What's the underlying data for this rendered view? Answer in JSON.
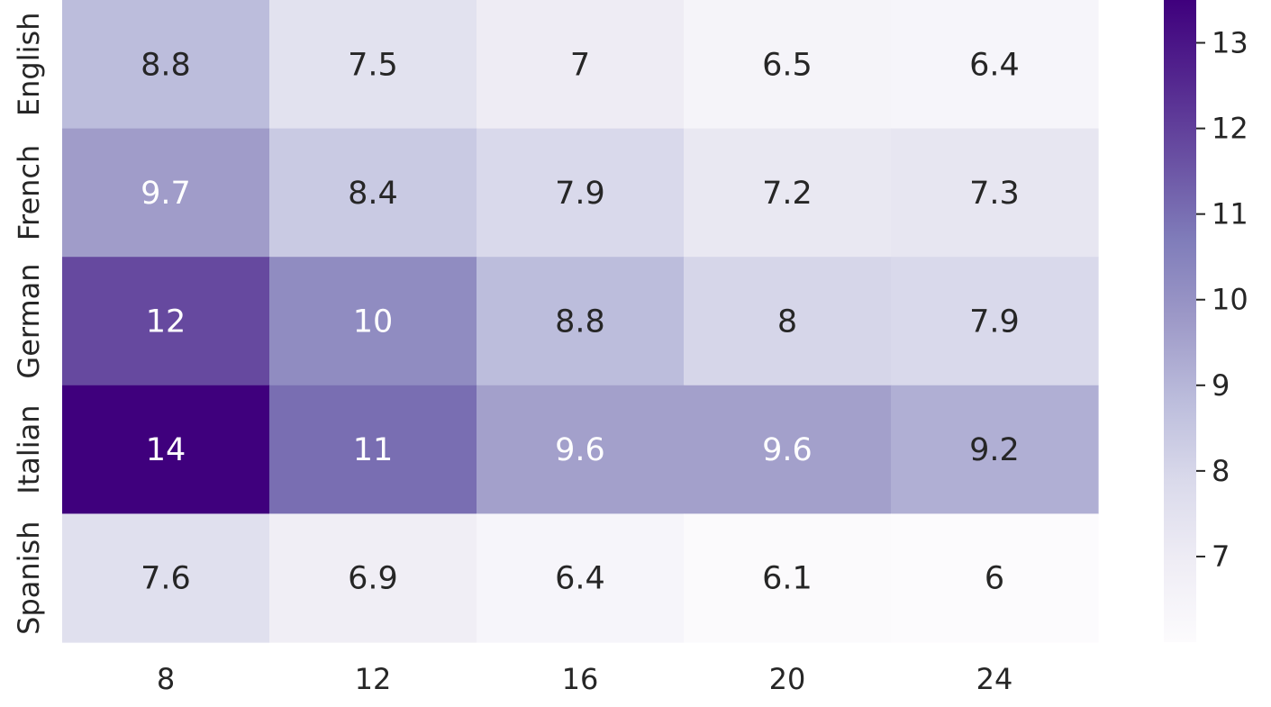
{
  "chart_data": {
    "type": "heatmap",
    "title": "",
    "xlabel": "",
    "ylabel": "",
    "x_categories": [
      "8",
      "12",
      "16",
      "20",
      "24"
    ],
    "y_categories": [
      "English",
      "French",
      "German",
      "Italian",
      "Spanish"
    ],
    "values": [
      [
        8.8,
        7.5,
        7.0,
        6.5,
        6.4
      ],
      [
        9.7,
        8.4,
        7.9,
        7.2,
        7.3
      ],
      [
        11.8,
        10.2,
        8.8,
        8.0,
        7.9
      ],
      [
        13.5,
        11.0,
        9.6,
        9.6,
        9.2
      ],
      [
        7.6,
        6.9,
        6.4,
        6.1,
        6.0
      ]
    ],
    "cell_labels": [
      [
        "8.8",
        "7.5",
        "7",
        "6.5",
        "6.4"
      ],
      [
        "9.7",
        "8.4",
        "7.9",
        "7.2",
        "7.3"
      ],
      [
        "12",
        "10",
        "8.8",
        "8",
        "7.9"
      ],
      [
        "14",
        "11",
        "9.6",
        "9.6",
        "9.2"
      ],
      [
        "7.6",
        "6.9",
        "6.4",
        "6.1",
        "6"
      ]
    ],
    "colormap": "Purples",
    "colormap_stops": [
      "#fcfbfd",
      "#efedf5",
      "#dadaeb",
      "#bcbddc",
      "#9e9ac8",
      "#807dba",
      "#6a51a3",
      "#54278f",
      "#3f007d"
    ],
    "value_range": [
      6.0,
      13.5
    ],
    "colorbar_ticks": [
      7,
      8,
      9,
      10,
      11,
      12,
      13
    ],
    "text_dark": "#262626",
    "text_light": "#ffffff"
  }
}
